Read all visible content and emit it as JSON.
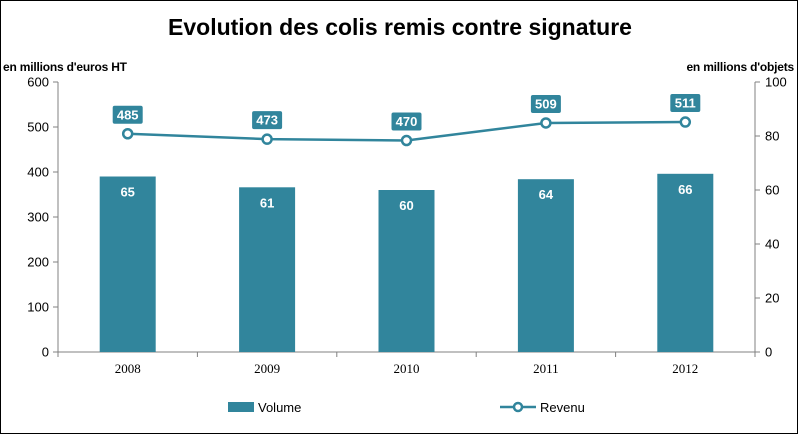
{
  "chart_data": {
    "type": "bar",
    "title": "Evolution des colis remis contre signature",
    "left_axis_unit": "en millions d'euros HT",
    "right_axis_unit": "en millions d'objets",
    "categories": [
      "2008",
      "2009",
      "2010",
      "2011",
      "2012"
    ],
    "left_axis": {
      "min": 0,
      "max": 600,
      "ticks": [
        "0",
        "100",
        "200",
        "300",
        "400",
        "500",
        "600"
      ]
    },
    "right_axis": {
      "min": 0,
      "max": 100,
      "ticks": [
        "0",
        "20",
        "40",
        "60",
        "80",
        "100"
      ]
    },
    "series": [
      {
        "name": "Volume",
        "type": "bar",
        "axis": "right",
        "values": [
          65,
          61,
          60,
          64,
          66
        ],
        "labels": [
          "65",
          "61",
          "60",
          "64",
          "66"
        ],
        "color": "#31859C"
      },
      {
        "name": "Revenu",
        "type": "line",
        "axis": "left",
        "values": [
          485,
          473,
          470,
          509,
          511
        ],
        "labels": [
          "485",
          "473",
          "470",
          "509",
          "511"
        ],
        "color": "#31859C"
      }
    ],
    "grid": false,
    "legend": "bottom"
  }
}
